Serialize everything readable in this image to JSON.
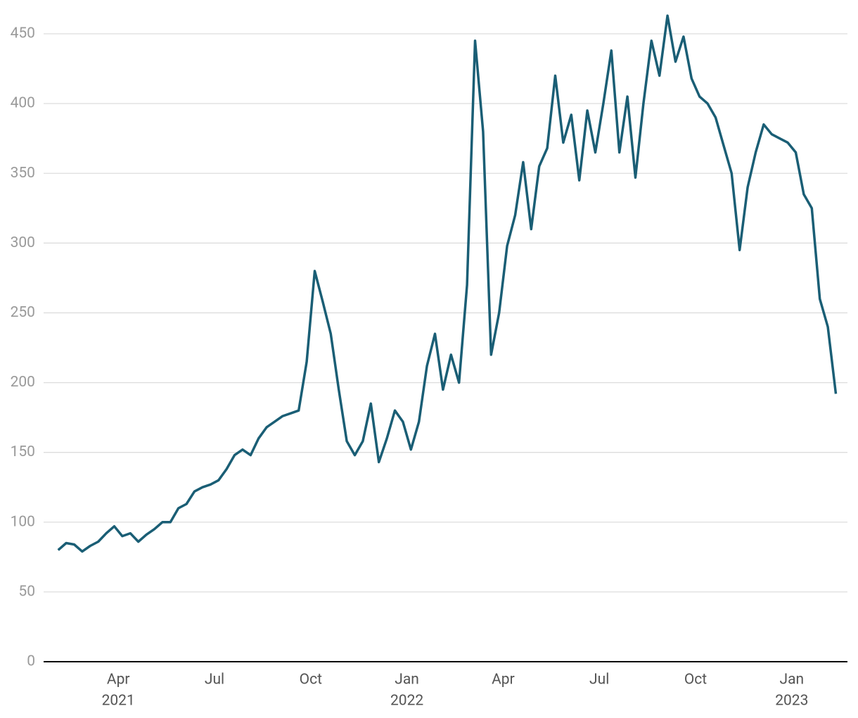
{
  "chart_data": {
    "type": "line",
    "x": [
      "2021-02",
      "2021-02",
      "2021-02",
      "2021-02",
      "2021-03",
      "2021-03",
      "2021-03",
      "2021-03",
      "2021-04",
      "2021-04",
      "2021-04",
      "2021-04",
      "2021-05",
      "2021-05",
      "2021-05",
      "2021-05",
      "2021-06",
      "2021-06",
      "2021-06",
      "2021-06",
      "2021-07",
      "2021-07",
      "2021-07",
      "2021-07",
      "2021-08",
      "2021-08",
      "2021-08",
      "2021-08",
      "2021-09",
      "2021-09",
      "2021-09",
      "2021-09",
      "2021-10",
      "2021-10",
      "2021-10",
      "2021-10",
      "2021-11",
      "2021-11",
      "2021-11",
      "2021-11",
      "2021-12",
      "2021-12",
      "2021-12",
      "2021-12",
      "2022-01",
      "2022-01",
      "2022-01",
      "2022-01",
      "2022-02",
      "2022-02",
      "2022-02",
      "2022-02",
      "2022-03",
      "2022-03",
      "2022-03",
      "2022-03",
      "2022-04",
      "2022-04",
      "2022-04",
      "2022-04",
      "2022-05",
      "2022-05",
      "2022-05",
      "2022-05",
      "2022-06",
      "2022-06",
      "2022-06",
      "2022-06",
      "2022-07",
      "2022-07",
      "2022-07",
      "2022-07",
      "2022-08",
      "2022-08",
      "2022-08",
      "2022-08",
      "2022-09",
      "2022-09",
      "2022-09",
      "2022-09",
      "2022-10",
      "2022-10",
      "2022-10",
      "2022-10",
      "2022-11",
      "2022-11",
      "2022-11",
      "2022-11",
      "2022-12",
      "2022-12",
      "2022-12",
      "2022-12",
      "2023-01",
      "2023-01",
      "2023-01",
      "2023-01",
      "2023-02",
      "2023-02"
    ],
    "series": [
      {
        "color": "#1a5e75",
        "values": [
          80,
          85,
          84,
          79,
          83,
          86,
          92,
          97,
          90,
          92,
          86,
          91,
          95,
          100,
          100,
          110,
          113,
          122,
          125,
          127,
          130,
          138,
          148,
          152,
          148,
          160,
          168,
          172,
          176,
          178,
          180,
          215,
          280,
          258,
          235,
          195,
          158,
          148,
          158,
          185,
          143,
          160,
          180,
          172,
          152,
          172,
          212,
          235,
          195,
          220,
          200,
          270,
          445,
          380,
          220,
          250,
          298,
          320,
          358,
          310,
          355,
          368,
          420,
          372,
          392,
          345,
          395,
          365,
          400,
          438,
          365,
          405,
          347,
          400,
          445,
          420,
          463,
          430,
          448,
          418,
          405,
          400,
          390,
          370,
          350,
          295,
          340,
          365,
          385,
          378,
          375,
          372,
          365,
          335,
          325,
          260,
          240,
          192
        ]
      }
    ],
    "ylim": [
      0,
      450
    ],
    "yticks": [
      0,
      50,
      100,
      150,
      200,
      250,
      300,
      350,
      400,
      450
    ],
    "xticks": [
      {
        "value": "2021-04",
        "label": "Apr",
        "year": "2021"
      },
      {
        "value": "2021-07",
        "label": "Jul"
      },
      {
        "value": "2021-10",
        "label": "Oct"
      },
      {
        "value": "2022-01",
        "label": "Jan",
        "year": "2022"
      },
      {
        "value": "2022-04",
        "label": "Apr"
      },
      {
        "value": "2022-07",
        "label": "Jul"
      },
      {
        "value": "2022-10",
        "label": "Oct"
      },
      {
        "value": "2023-01",
        "label": "Jan",
        "year": "2023"
      }
    ],
    "grid": true
  }
}
